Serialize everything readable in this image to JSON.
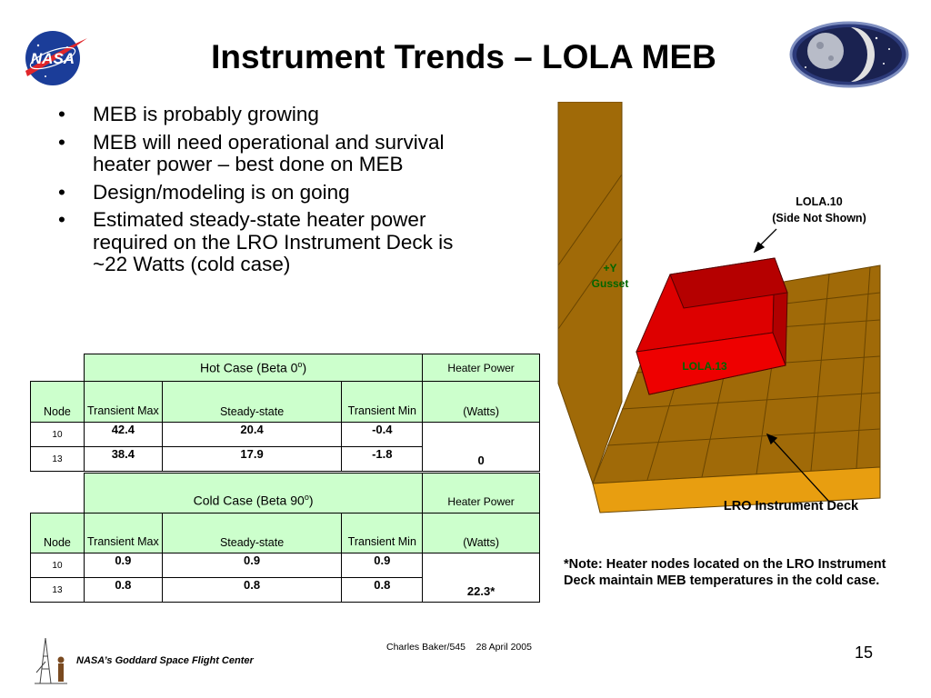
{
  "title": "Instrument Trends – LOLA MEB",
  "logos": {
    "nasa_text": "NASA",
    "nasa_icon": "nasa-meatball-icon",
    "moon_icon": "moon-mission-logo-icon",
    "gsfc_icon": "gsfc-tower-icon"
  },
  "bullets": [
    {
      "marker": "•",
      "text": "MEB is probably growing"
    },
    {
      "marker": "•",
      "text": "MEB will need operational and survival heater power – best done on MEB"
    },
    {
      "marker": "•",
      "text": "Design/modeling is on going"
    },
    {
      "marker": "•",
      "text": "Estimated steady-state heater power required on the LRO Instrument Deck is ~22 Watts (cold case)"
    }
  ],
  "hot_table": {
    "case_title": "Hot Case (Beta 0",
    "case_sup": "o",
    "case_close": ")",
    "heater_header": "Heater Power",
    "node_header": "Node",
    "col_transient_max": "Transient Max",
    "col_steady": "Steady-state",
    "col_transient_min": "Transient Min",
    "units": "(Watts)",
    "rows": [
      {
        "node": "10",
        "tmax": "42.4",
        "steady": "20.4",
        "tmin": "-0.4"
      },
      {
        "node": "13",
        "tmax": "38.4",
        "steady": "17.9",
        "tmin": "-1.8"
      }
    ],
    "heater_value": "0"
  },
  "cold_table": {
    "case_title": "Cold Case (Beta 90",
    "case_sup": "o",
    "case_close": ")",
    "heater_header": "Heater Power",
    "node_header": "Node",
    "col_transient_max": "Transient Max",
    "col_steady": "Steady-state",
    "col_transient_min": "Transient Min",
    "units": "(Watts)",
    "rows": [
      {
        "node": "10",
        "tmax": "0.9",
        "steady": "0.9",
        "tmin": "0.9"
      },
      {
        "node": "13",
        "tmax": "0.8",
        "steady": "0.8",
        "tmin": "0.8"
      }
    ],
    "heater_value": "22.3*"
  },
  "diagram": {
    "lola10_line1": "LOLA.10",
    "lola10_line2": "(Side Not Shown)",
    "gusset_line1": "+Y",
    "gusset_line2": "Gusset",
    "lola13": "LOLA.13",
    "deck": "LRO Instrument Deck",
    "colors": {
      "deck_brown": "#a06a08",
      "deck_orange": "#e89e10",
      "meb_red": "#dd0000",
      "meb_dark_red": "#a00000",
      "label_green": "#006600"
    }
  },
  "note": "*Note: Heater nodes located on the LRO Instrument Deck maintain MEB temperatures in the cold case.",
  "footer": {
    "author": "Charles Baker/545    28 April 2005",
    "page": "15",
    "org": "NASA’s Goddard Space Flight Center"
  }
}
